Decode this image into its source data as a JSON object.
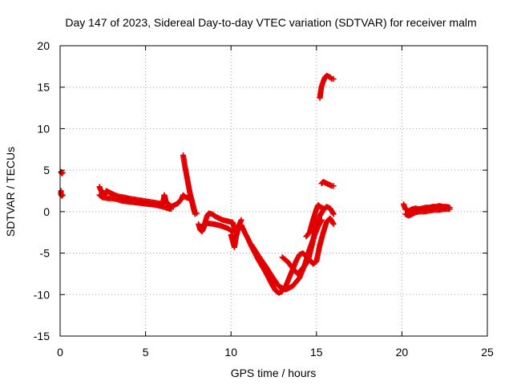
{
  "chart_data": {
    "type": "scatter",
    "title": "Day 147 of 2023, Sidereal Day-to-day VTEC variation (SDTVAR) for receiver malm",
    "xlabel": "GPS time / hours",
    "ylabel": "SDTVAR / TECUs",
    "xlim": [
      0,
      25
    ],
    "ylim": [
      -15,
      20
    ],
    "xticks": [
      0,
      5,
      10,
      15,
      20,
      25
    ],
    "yticks": [
      -15,
      -10,
      -5,
      0,
      5,
      10,
      15,
      20
    ],
    "grid": true,
    "marker": "plus",
    "color": "#e00000",
    "segments": [
      [
        [
          0.05,
          4.8
        ],
        [
          0.1,
          4.6
        ],
        [
          0.15,
          4.7
        ]
      ],
      [
        [
          0.05,
          2.5
        ],
        [
          0.05,
          2.1
        ],
        [
          0.1,
          1.9
        ],
        [
          0.15,
          2.0
        ]
      ],
      [
        [
          2.3,
          3.0
        ],
        [
          2.4,
          2.5
        ],
        [
          2.5,
          2.2
        ],
        [
          2.6,
          2.0
        ],
        [
          2.7,
          2.5
        ],
        [
          2.8,
          2.4
        ],
        [
          3.0,
          2.2
        ],
        [
          3.2,
          2.0
        ],
        [
          3.5,
          1.8
        ],
        [
          3.8,
          1.7
        ],
        [
          4.0,
          1.6
        ],
        [
          4.3,
          1.5
        ],
        [
          4.6,
          1.4
        ],
        [
          4.9,
          1.3
        ],
        [
          5.2,
          1.2
        ],
        [
          5.5,
          1.1
        ],
        [
          5.8,
          1.0
        ],
        [
          6.0,
          0.9
        ],
        [
          6.1,
          2.0
        ],
        [
          6.2,
          1.2
        ],
        [
          6.5,
          0.6
        ],
        [
          6.7,
          0.8
        ],
        [
          6.9,
          1.0
        ],
        [
          7.0,
          1.3
        ],
        [
          7.1,
          1.5
        ],
        [
          7.2,
          2.0
        ],
        [
          7.3,
          1.8
        ],
        [
          7.5,
          1.6
        ],
        [
          7.6,
          2.0
        ],
        [
          7.7,
          1.4
        ],
        [
          7.8,
          0.4
        ],
        [
          7.9,
          -0.3
        ]
      ],
      [
        [
          2.3,
          2.0
        ],
        [
          2.5,
          1.7
        ],
        [
          2.8,
          1.6
        ],
        [
          3.0,
          1.6
        ],
        [
          3.3,
          1.5
        ],
        [
          3.6,
          1.3
        ],
        [
          4.0,
          1.2
        ],
        [
          4.4,
          1.1
        ],
        [
          4.8,
          1.0
        ],
        [
          5.2,
          0.9
        ],
        [
          5.6,
          0.8
        ],
        [
          6.0,
          0.6
        ],
        [
          6.3,
          0.4
        ],
        [
          6.5,
          0.3
        ]
      ],
      [
        [
          7.2,
          6.8
        ],
        [
          7.3,
          5.5
        ],
        [
          7.4,
          4.4
        ],
        [
          7.5,
          3.3
        ],
        [
          7.6,
          2.2
        ],
        [
          7.7,
          1.4
        ],
        [
          7.8,
          0.6
        ],
        [
          7.9,
          -0.2
        ],
        [
          8.0,
          -0.2
        ]
      ],
      [
        [
          8.1,
          -1.5
        ],
        [
          8.2,
          -2.2
        ],
        [
          8.3,
          -2.4
        ],
        [
          8.4,
          -2.0
        ],
        [
          8.5,
          -1.2
        ],
        [
          8.6,
          -0.5
        ],
        [
          8.7,
          -0.2
        ],
        [
          8.9,
          -0.3
        ],
        [
          9.1,
          -0.6
        ],
        [
          9.3,
          -0.8
        ],
        [
          9.5,
          -1.0
        ],
        [
          9.7,
          -1.1
        ],
        [
          9.9,
          -1.2
        ],
        [
          10.1,
          -1.3
        ],
        [
          10.2,
          -2.0
        ],
        [
          10.3,
          -2.6
        ]
      ],
      [
        [
          8.3,
          -1.8
        ],
        [
          8.6,
          -1.4
        ],
        [
          9.0,
          -1.5
        ],
        [
          9.4,
          -1.7
        ],
        [
          9.8,
          -2.0
        ],
        [
          10.1,
          -2.4
        ]
      ],
      [
        [
          10.0,
          -2.8
        ],
        [
          10.2,
          -4.3
        ],
        [
          10.3,
          -3.0
        ],
        [
          10.5,
          -1.5
        ],
        [
          10.6,
          -1.0
        ]
      ],
      [
        [
          10.6,
          -1.6
        ],
        [
          10.8,
          -2.5
        ],
        [
          11.0,
          -3.3
        ],
        [
          11.2,
          -4.2
        ],
        [
          11.4,
          -5.0
        ],
        [
          11.6,
          -5.8
        ],
        [
          11.8,
          -6.5
        ],
        [
          12.0,
          -7.2
        ],
        [
          12.2,
          -8.0
        ],
        [
          12.4,
          -8.8
        ],
        [
          12.6,
          -9.5
        ],
        [
          12.8,
          -9.8
        ],
        [
          13.0,
          -9.6
        ],
        [
          13.2,
          -9.0
        ],
        [
          13.4,
          -8.0
        ],
        [
          13.6,
          -7.0
        ],
        [
          13.8,
          -6.0
        ],
        [
          14.0,
          -5.2
        ],
        [
          14.2,
          -5.0
        ],
        [
          14.4,
          -5.4
        ],
        [
          14.6,
          -5.8
        ],
        [
          14.8,
          -6.3
        ],
        [
          15.0,
          -6.0
        ],
        [
          15.2,
          -4.0
        ],
        [
          15.4,
          -2.5
        ],
        [
          15.6,
          -1.2
        ],
        [
          15.8,
          -0.8
        ],
        [
          16.0,
          -1.5
        ]
      ],
      [
        [
          11.2,
          -4.0
        ],
        [
          11.6,
          -5.3
        ],
        [
          12.0,
          -6.5
        ],
        [
          12.4,
          -7.8
        ],
        [
          12.8,
          -9.0
        ],
        [
          13.2,
          -9.4
        ],
        [
          13.6,
          -9.0
        ],
        [
          14.0,
          -8.0
        ],
        [
          14.3,
          -6.5
        ],
        [
          14.6,
          -4.5
        ],
        [
          14.9,
          -2.8
        ],
        [
          15.1,
          -1.8
        ],
        [
          15.3,
          -1.0
        ]
      ],
      [
        [
          13.0,
          -5.5
        ],
        [
          13.3,
          -6.0
        ],
        [
          13.6,
          -6.8
        ],
        [
          13.9,
          -7.5
        ],
        [
          14.2,
          -6.8
        ],
        [
          14.5,
          -6.0
        ],
        [
          14.8,
          -3.5
        ],
        [
          15.0,
          -1.5
        ],
        [
          15.2,
          -0.5
        ],
        [
          15.4,
          0.2
        ],
        [
          15.6,
          0.6
        ],
        [
          15.8,
          0.4
        ],
        [
          16.0,
          -0.3
        ]
      ],
      [
        [
          14.4,
          -3.0
        ],
        [
          14.6,
          -2.5
        ],
        [
          14.8,
          -1.0
        ],
        [
          15.0,
          0.3
        ],
        [
          15.1,
          0.8
        ],
        [
          15.2,
          0.6
        ],
        [
          15.4,
          0.4
        ]
      ],
      [
        [
          15.2,
          13.7
        ],
        [
          15.25,
          14.5
        ],
        [
          15.3,
          15.1
        ],
        [
          15.4,
          15.7
        ],
        [
          15.5,
          16.2
        ],
        [
          15.6,
          16.4
        ],
        [
          15.7,
          16.3
        ],
        [
          15.8,
          16.2
        ],
        [
          15.9,
          16.0
        ],
        [
          16.0,
          16.0
        ]
      ],
      [
        [
          15.3,
          3.4
        ],
        [
          15.4,
          3.6
        ],
        [
          15.5,
          3.5
        ],
        [
          15.6,
          3.4
        ],
        [
          15.7,
          3.3
        ],
        [
          15.8,
          3.2
        ],
        [
          15.9,
          3.1
        ],
        [
          16.0,
          3.1
        ]
      ],
      [
        [
          20.1,
          0.9
        ],
        [
          20.2,
          0.3
        ],
        [
          20.4,
          0.1
        ],
        [
          20.6,
          0.3
        ],
        [
          20.8,
          0.4
        ],
        [
          21.0,
          0.3
        ],
        [
          21.2,
          0.4
        ],
        [
          21.4,
          0.5
        ],
        [
          21.6,
          0.5
        ],
        [
          21.8,
          0.6
        ],
        [
          22.0,
          0.6
        ],
        [
          22.2,
          0.7
        ],
        [
          22.4,
          0.6
        ],
        [
          22.6,
          0.6
        ],
        [
          22.8,
          0.5
        ]
      ],
      [
        [
          20.2,
          -0.3
        ],
        [
          20.4,
          -0.5
        ],
        [
          20.6,
          -0.3
        ],
        [
          20.8,
          -0.1
        ],
        [
          21.0,
          0.0
        ],
        [
          21.3,
          0.0
        ],
        [
          21.6,
          0.1
        ],
        [
          21.9,
          0.2
        ],
        [
          22.2,
          0.2
        ],
        [
          22.5,
          0.3
        ],
        [
          22.8,
          0.3
        ]
      ]
    ]
  }
}
